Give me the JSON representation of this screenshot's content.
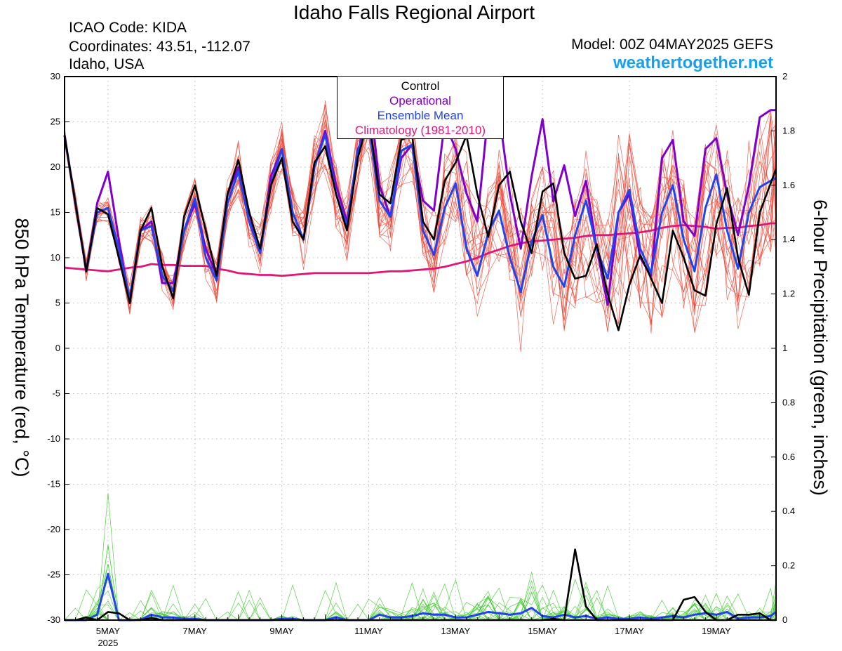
{
  "header": {
    "title": "Idaho Falls Regional Airport",
    "icao": "ICAO Code: KIDA",
    "coordinates": "Coordinates: 43.51, -112.07",
    "region": "Idaho, USA",
    "model": "Model: 00Z 04MAY2025 GEFS",
    "site": "weathertogether.net"
  },
  "colors": {
    "members": "#ee4a3a",
    "precip_members": "#44cc33",
    "control": "#000000",
    "operational": "#7f00cc",
    "ensemble_mean": "#2244ee",
    "climatology": "#e0157a",
    "site_link": "#1a9ff0"
  },
  "chart_data": {
    "type": "line",
    "ylabel": "850 hPa Temperature (red, °C)",
    "y2label": "6-hour Precipitation (green, inches)",
    "ylim": [
      -30,
      30
    ],
    "y2lim": [
      0,
      2
    ],
    "xlim": [
      0,
      16.375
    ],
    "x_unit": "days after 00Z 04MAY2025",
    "yticks": [
      30,
      25,
      20,
      15,
      10,
      5,
      0,
      -5,
      -10,
      -15,
      -20,
      -25,
      -30
    ],
    "y2ticks": [
      "2",
      "1.8",
      "1.6",
      "1.4",
      "1.2",
      "1",
      "0.8",
      "0.6",
      "0.4",
      "0.2",
      "0"
    ],
    "xticks": [
      {
        "day": 1,
        "label": "5MAY",
        "sublabel": "2025"
      },
      {
        "day": 3,
        "label": "7MAY"
      },
      {
        "day": 5,
        "label": "9MAY"
      },
      {
        "day": 7,
        "label": "11MAY"
      },
      {
        "day": 9,
        "label": "13MAY"
      },
      {
        "day": 11,
        "label": "15MAY"
      },
      {
        "day": 13,
        "label": "17MAY"
      },
      {
        "day": 15,
        "label": "19MAY"
      }
    ],
    "grid": true,
    "legend": {
      "position": "top-center",
      "entries": [
        "Control",
        "Operational",
        "Ensemble Mean",
        "Climatology (1981-2010)"
      ]
    },
    "temperature_series": {
      "x": [
        0,
        0.25,
        0.5,
        0.75,
        1,
        1.25,
        1.5,
        1.75,
        2,
        2.25,
        2.5,
        2.75,
        3,
        3.25,
        3.5,
        3.75,
        4,
        4.25,
        4.5,
        4.75,
        5,
        5.25,
        5.5,
        5.75,
        6,
        6.25,
        6.5,
        6.75,
        7,
        7.25,
        7.5,
        7.75,
        8,
        8.25,
        8.5,
        8.75,
        9,
        9.25,
        9.5,
        9.75,
        10,
        10.25,
        10.5,
        10.75,
        11,
        11.25,
        11.5,
        11.75,
        12,
        12.25,
        12.5,
        12.75,
        13,
        13.25,
        13.5,
        13.75,
        14,
        14.25,
        14.5,
        14.75,
        15,
        15.25,
        15.5,
        15.75,
        16,
        16.25,
        16.375
      ],
      "series": [
        {
          "name": "Control",
          "values": [
            23.5,
            16,
            8.5,
            15.5,
            14.8,
            10,
            5,
            13,
            15.5,
            9,
            5.5,
            14.5,
            18,
            13,
            8,
            17,
            20.8,
            15,
            11,
            18,
            21,
            14,
            12,
            20.5,
            22.3,
            17,
            13,
            21,
            25.5,
            17,
            16,
            23,
            23.5,
            14,
            12,
            18.5,
            20.5,
            23.5,
            17,
            12.3,
            18,
            19.5,
            14,
            10.5,
            17.3,
            18.2,
            10.5,
            7.7,
            8,
            11.5,
            6,
            2,
            7,
            10.3,
            7.7,
            5,
            13,
            10,
            6.4,
            5.8,
            13.7,
            17.7,
            10,
            5.9,
            15,
            18.2,
            19.8
          ]
        },
        {
          "name": "Operational",
          "values": [
            23.5,
            16,
            8.5,
            16,
            19.5,
            12,
            5,
            13,
            14,
            7.2,
            7.2,
            13,
            16,
            11,
            8,
            17,
            20,
            15,
            10.5,
            19,
            22,
            15,
            12,
            20,
            24,
            18,
            14,
            21,
            29,
            18,
            14.5,
            21,
            22.5,
            16.3,
            15.2,
            25,
            22,
            17.1,
            14,
            26,
            26,
            17,
            11,
            19,
            25.3,
            16.2,
            20.2,
            14.6,
            18.5,
            11,
            4.8,
            15,
            17,
            10,
            8,
            21,
            23,
            14,
            12.4,
            22,
            23.2,
            17,
            12.5,
            18,
            25.5,
            26.3,
            26.3
          ]
        },
        {
          "name": "Ensemble Mean",
          "values": [
            23.5,
            16,
            8.5,
            15,
            15.5,
            11,
            5.5,
            13,
            13.5,
            8,
            6.3,
            13,
            16.5,
            10,
            7.5,
            16,
            19.5,
            14,
            10.5,
            18,
            22,
            15,
            12,
            20,
            23.6,
            17,
            13.5,
            22,
            24.5,
            16.3,
            14.5,
            21.8,
            22.5,
            13,
            10.3,
            15.5,
            18.2,
            11,
            8,
            12.8,
            15.2,
            10,
            6.2,
            11.8,
            14.7,
            9,
            6.8,
            12.5,
            16.3,
            11,
            7.7,
            15,
            17.5,
            11,
            8.3,
            15,
            18,
            12,
            8.5,
            15.5,
            19.2,
            13,
            8.8,
            15,
            17.8,
            18.5,
            18.8
          ]
        },
        {
          "name": "Climatology (1981-2010)",
          "values": [
            8.9,
            8.8,
            8.7,
            8.6,
            8.5,
            8.7,
            8.9,
            9.0,
            9.3,
            9.2,
            9.2,
            9.1,
            9.1,
            9.1,
            8.8,
            8.6,
            8.3,
            8.2,
            8.1,
            8.1,
            8.0,
            8.1,
            8.2,
            8.3,
            8.3,
            8.3,
            8.3,
            8.3,
            8.3,
            8.4,
            8.5,
            8.5,
            8.6,
            8.7,
            8.8,
            9.0,
            9.3,
            9.6,
            10.0,
            10.5,
            10.9,
            11.3,
            11.6,
            11.8,
            11.9,
            12.0,
            12.1,
            12.2,
            12.4,
            12.5,
            12.5,
            12.6,
            12.7,
            12.8,
            13.0,
            13.3,
            13.5,
            13.6,
            13.5,
            13.4,
            13.2,
            13.3,
            13.3,
            13.5,
            13.6,
            13.8,
            13.8
          ]
        }
      ]
    },
    "precipitation_series": {
      "x": [
        0,
        0.25,
        0.5,
        0.75,
        1,
        1.25,
        1.5,
        1.75,
        2,
        2.25,
        2.5,
        2.75,
        3,
        3.25,
        3.5,
        3.75,
        4,
        4.25,
        4.5,
        4.75,
        5,
        5.25,
        5.5,
        5.75,
        6,
        6.25,
        6.5,
        6.75,
        7,
        7.25,
        7.5,
        7.75,
        8,
        8.25,
        8.5,
        8.75,
        9,
        9.25,
        9.5,
        9.75,
        10,
        10.25,
        10.5,
        10.75,
        11,
        11.25,
        11.5,
        11.75,
        12,
        12.25,
        12.5,
        12.75,
        13,
        13.25,
        13.5,
        13.75,
        14,
        14.25,
        14.5,
        14.75,
        15,
        15.25,
        15.5,
        15.75,
        16,
        16.25,
        16.375
      ],
      "series": [
        {
          "name": "Control",
          "values": [
            0,
            0,
            0.01,
            0,
            0.03,
            0.025,
            0,
            0,
            0.008,
            0,
            0,
            0,
            0,
            0,
            0,
            0,
            0,
            0,
            0,
            0,
            0,
            0,
            0,
            0,
            0,
            0,
            0,
            0,
            0,
            0,
            0,
            0,
            0,
            0,
            0,
            0,
            0,
            0,
            0,
            0,
            0,
            0,
            0,
            0,
            0,
            0.005,
            0,
            0.26,
            0.05,
            0,
            0,
            0,
            0,
            0,
            0,
            0,
            0,
            0.075,
            0.085,
            0.03,
            0,
            0,
            0.02,
            0.02,
            0.025,
            0,
            0
          ]
        },
        {
          "name": "Ensemble Mean",
          "values": [
            0,
            0,
            0,
            0.02,
            0.17,
            0,
            0,
            0.002,
            0.02,
            0.01,
            0.01,
            0.005,
            0.005,
            0,
            0,
            0,
            0,
            0,
            0,
            0,
            0.005,
            0.005,
            0,
            0,
            0,
            0.01,
            0,
            0,
            0,
            0.02,
            0.01,
            0.01,
            0.015,
            0.025,
            0.02,
            0.02,
            0.01,
            0.01,
            0.02,
            0.03,
            0.025,
            0.02,
            0.025,
            0.045,
            0.015,
            0.01,
            0.02,
            0.01,
            0.015,
            0.005,
            0.01,
            0.005,
            0.005,
            0.01,
            0.005,
            0.01,
            0.015,
            0.01,
            0.02,
            0.025,
            0.02,
            0.03,
            0.005,
            0.01,
            0.01,
            0.015,
            0.03
          ]
        }
      ]
    }
  }
}
